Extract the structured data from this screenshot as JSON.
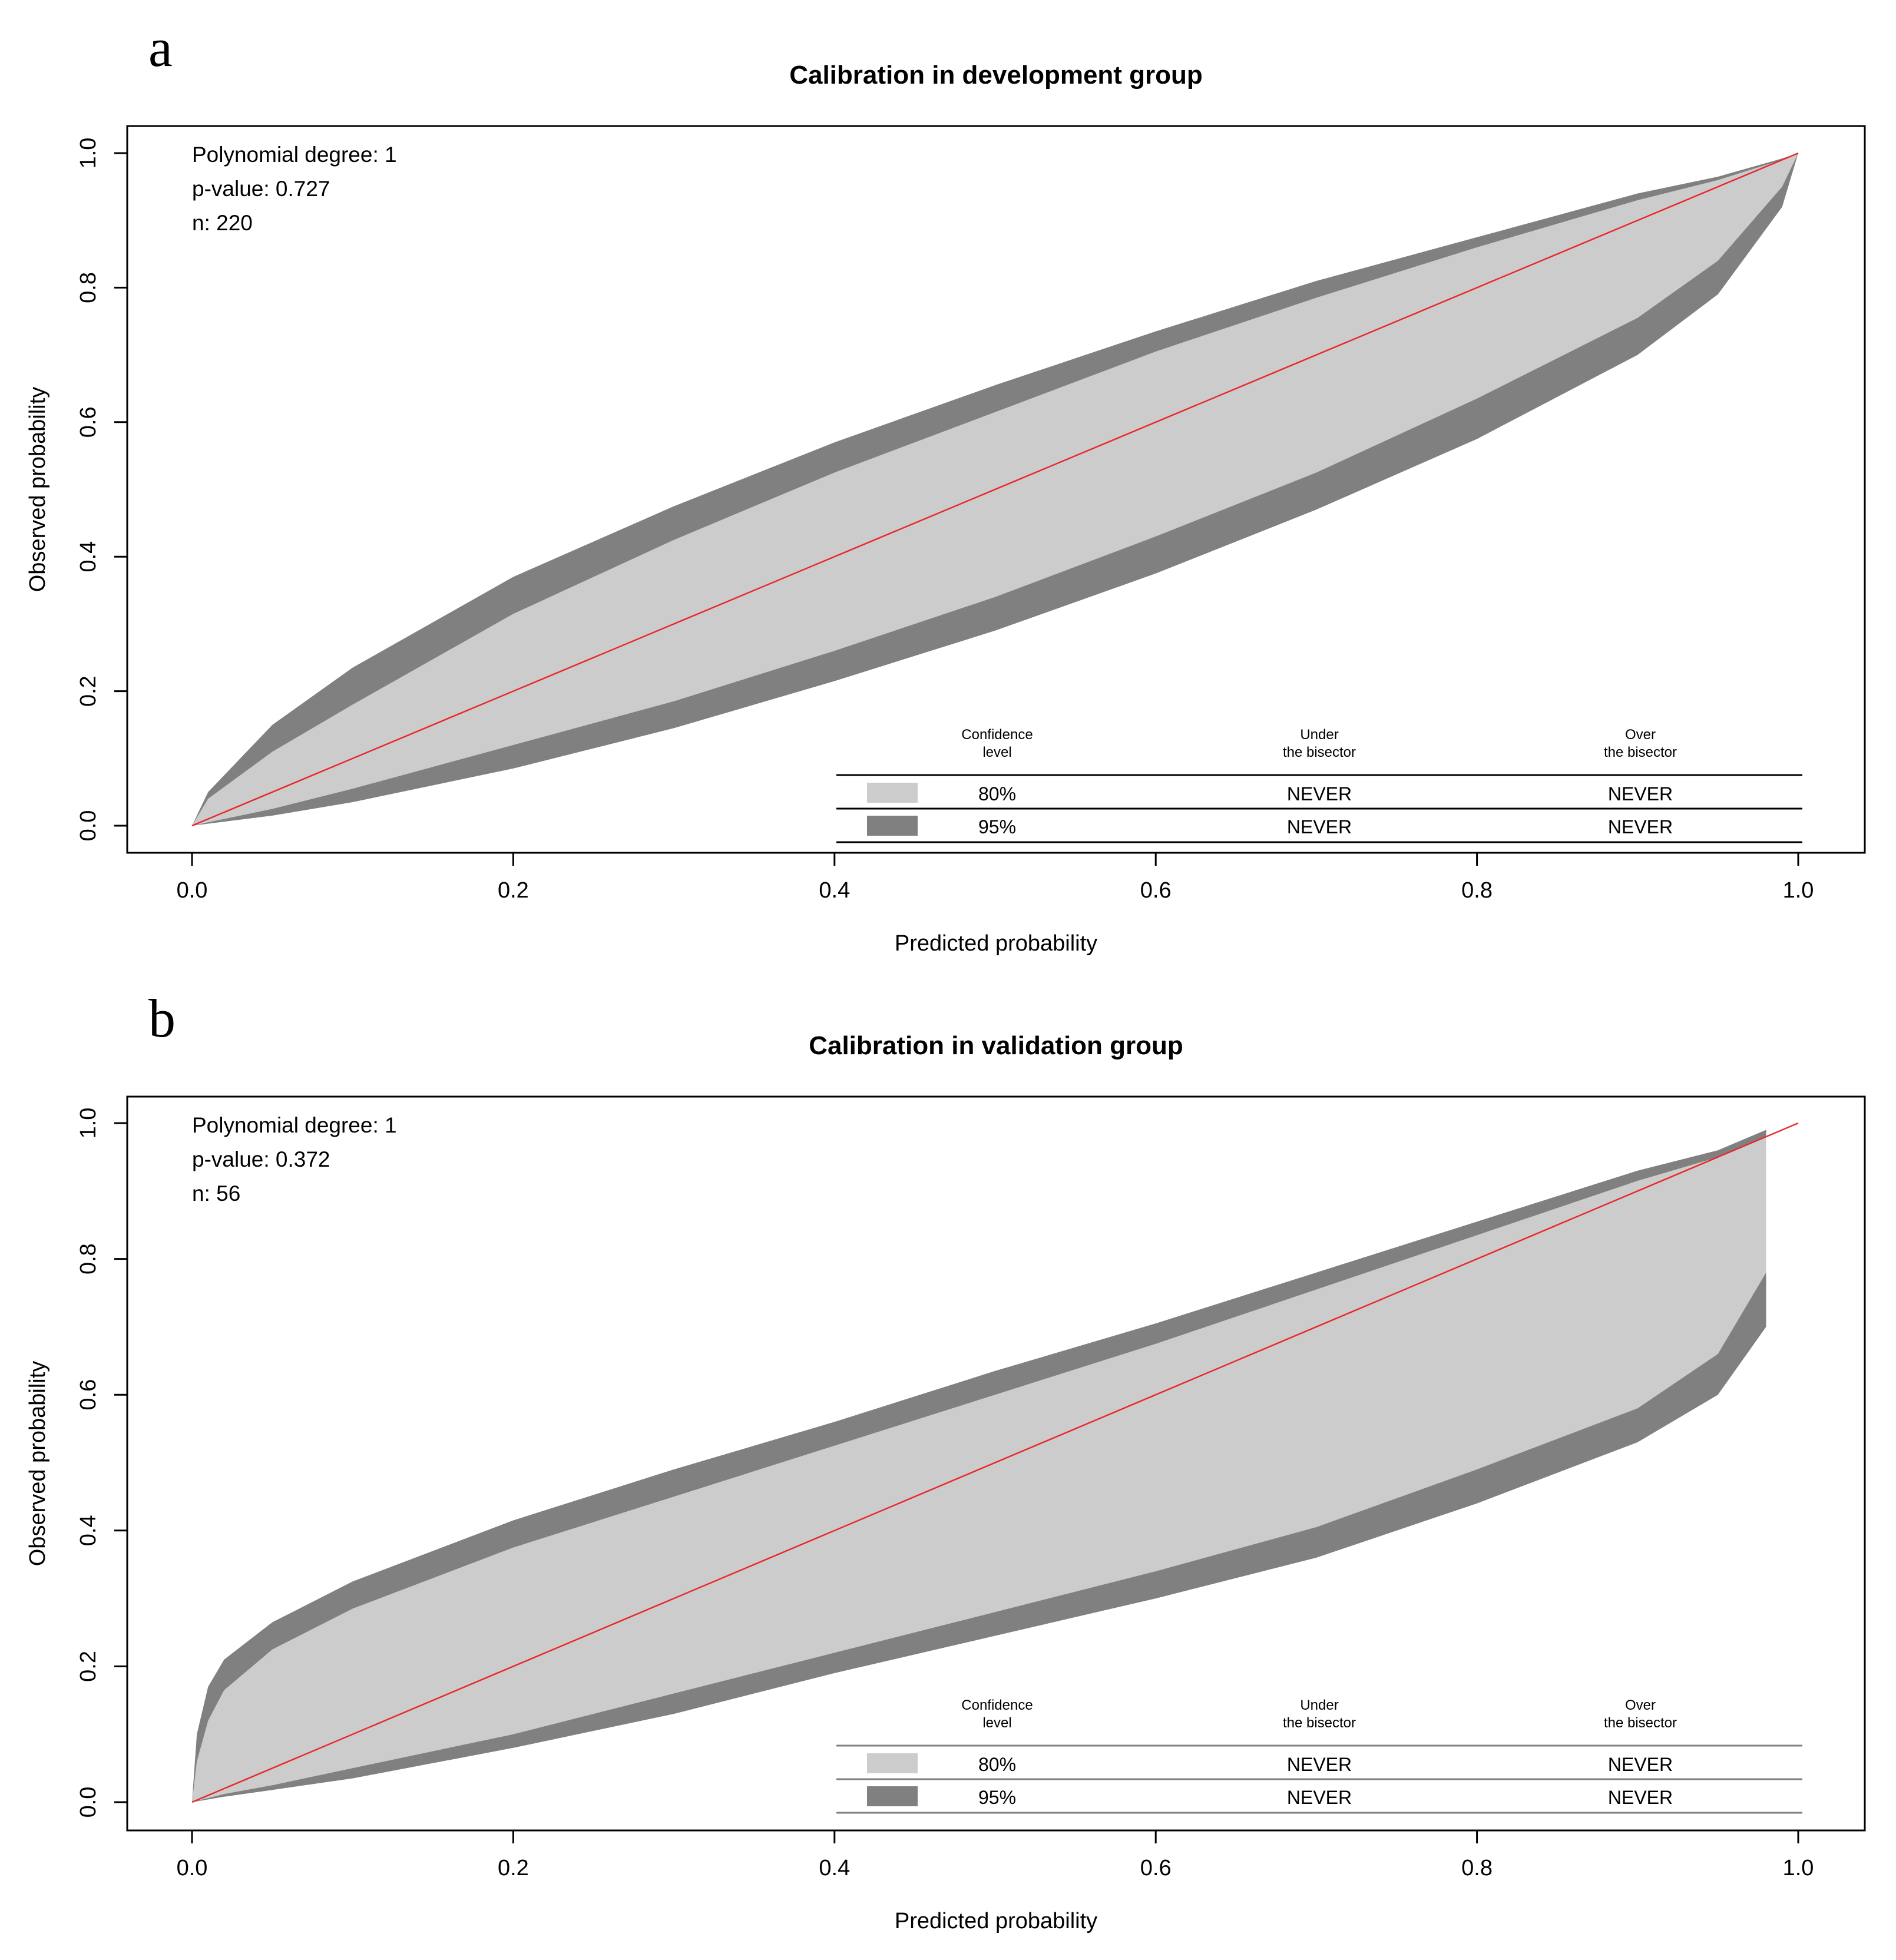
{
  "chart_data": [
    {
      "type": "area",
      "panel_label": "a",
      "title": "Calibration in development group",
      "xlabel": "Predicted probability",
      "ylabel": "Observed probability",
      "xlim": [
        0.0,
        1.0
      ],
      "ylim": [
        0.0,
        1.0
      ],
      "xticks": [
        "0.0",
        "0.2",
        "0.4",
        "0.6",
        "0.8",
        "1.0"
      ],
      "yticks": [
        "0.0",
        "0.2",
        "0.4",
        "0.6",
        "0.8",
        "1.0"
      ],
      "annotations": [
        "Polynomial degree: 1",
        "p-value: 0.727",
        "n: 220"
      ],
      "bisector": {
        "x": [
          0.0,
          1.0
        ],
        "y": [
          0.0,
          1.0
        ],
        "color": "#e8292b"
      },
      "bands": [
        {
          "name": "95%",
          "color": "#808080",
          "x": [
            0.0,
            0.01,
            0.05,
            0.1,
            0.2,
            0.3,
            0.4,
            0.5,
            0.6,
            0.7,
            0.8,
            0.9,
            0.95,
            0.99,
            1.0
          ],
          "upper": [
            0.0,
            0.05,
            0.15,
            0.235,
            0.37,
            0.475,
            0.57,
            0.655,
            0.735,
            0.81,
            0.875,
            0.94,
            0.965,
            0.992,
            1.0
          ],
          "lower": [
            0.0,
            0.003,
            0.015,
            0.035,
            0.085,
            0.145,
            0.215,
            0.29,
            0.375,
            0.47,
            0.575,
            0.7,
            0.79,
            0.92,
            1.0
          ]
        },
        {
          "name": "80%",
          "color": "#cccccc",
          "x": [
            0.0,
            0.01,
            0.05,
            0.1,
            0.2,
            0.3,
            0.4,
            0.5,
            0.6,
            0.7,
            0.8,
            0.9,
            0.95,
            0.99,
            1.0
          ],
          "upper": [
            0.0,
            0.04,
            0.11,
            0.18,
            0.315,
            0.425,
            0.525,
            0.615,
            0.705,
            0.785,
            0.86,
            0.93,
            0.96,
            0.99,
            1.0
          ],
          "lower": [
            0.0,
            0.005,
            0.025,
            0.055,
            0.12,
            0.185,
            0.26,
            0.34,
            0.43,
            0.525,
            0.635,
            0.755,
            0.84,
            0.95,
            1.0
          ]
        }
      ],
      "legend": {
        "headers": [
          "Confidence\nlevel",
          "Under\nthe bisector",
          "Over\nthe bisector"
        ],
        "rows": [
          {
            "level": "80%",
            "under": "NEVER",
            "over": "NEVER",
            "color": "#cccccc"
          },
          {
            "level": "95%",
            "under": "NEVER",
            "over": "NEVER",
            "color": "#808080"
          }
        ],
        "position": "bottom-right"
      }
    },
    {
      "type": "area",
      "panel_label": "b",
      "title": "Calibration in validation group",
      "xlabel": "Predicted probability",
      "ylabel": "Observed probability",
      "xlim": [
        0.0,
        1.0
      ],
      "ylim": [
        0.0,
        1.0
      ],
      "xticks": [
        "0.0",
        "0.2",
        "0.4",
        "0.6",
        "0.8",
        "1.0"
      ],
      "yticks": [
        "0.0",
        "0.2",
        "0.4",
        "0.6",
        "0.8",
        "1.0"
      ],
      "annotations": [
        "Polynomial degree: 1",
        "p-value: 0.372",
        "n: 56"
      ],
      "bisector": {
        "x": [
          0.0,
          1.0
        ],
        "y": [
          0.0,
          1.0
        ],
        "color": "#e8292b"
      },
      "bands": [
        {
          "name": "95%",
          "color": "#808080",
          "x": [
            0.0,
            0.003,
            0.01,
            0.02,
            0.05,
            0.1,
            0.2,
            0.3,
            0.4,
            0.5,
            0.6,
            0.7,
            0.8,
            0.9,
            0.95,
            0.98
          ],
          "upper": [
            0.0,
            0.1,
            0.17,
            0.21,
            0.265,
            0.325,
            0.415,
            0.49,
            0.56,
            0.635,
            0.705,
            0.78,
            0.855,
            0.93,
            0.96,
            0.99
          ],
          "lower": [
            0.0,
            0.001,
            0.004,
            0.008,
            0.018,
            0.035,
            0.08,
            0.13,
            0.19,
            0.245,
            0.3,
            0.36,
            0.44,
            0.53,
            0.6,
            0.7
          ]
        },
        {
          "name": "80%",
          "color": "#cccccc",
          "x": [
            0.0,
            0.003,
            0.01,
            0.02,
            0.05,
            0.1,
            0.2,
            0.3,
            0.4,
            0.5,
            0.6,
            0.7,
            0.8,
            0.9,
            0.95,
            0.98
          ],
          "upper": [
            0.0,
            0.06,
            0.12,
            0.165,
            0.225,
            0.285,
            0.375,
            0.45,
            0.525,
            0.6,
            0.675,
            0.755,
            0.835,
            0.915,
            0.95,
            0.98
          ],
          "lower": [
            0.0,
            0.002,
            0.006,
            0.012,
            0.025,
            0.05,
            0.1,
            0.16,
            0.22,
            0.28,
            0.34,
            0.405,
            0.49,
            0.58,
            0.66,
            0.78
          ]
        }
      ],
      "legend": {
        "headers": [
          "Confidence\nlevel",
          "Under\nthe bisector",
          "Over\nthe bisector"
        ],
        "rows": [
          {
            "level": "80%",
            "under": "NEVER",
            "over": "NEVER",
            "color": "#cccccc"
          },
          {
            "level": "95%",
            "under": "NEVER",
            "over": "NEVER",
            "color": "#808080"
          }
        ],
        "position": "bottom-right"
      }
    }
  ]
}
